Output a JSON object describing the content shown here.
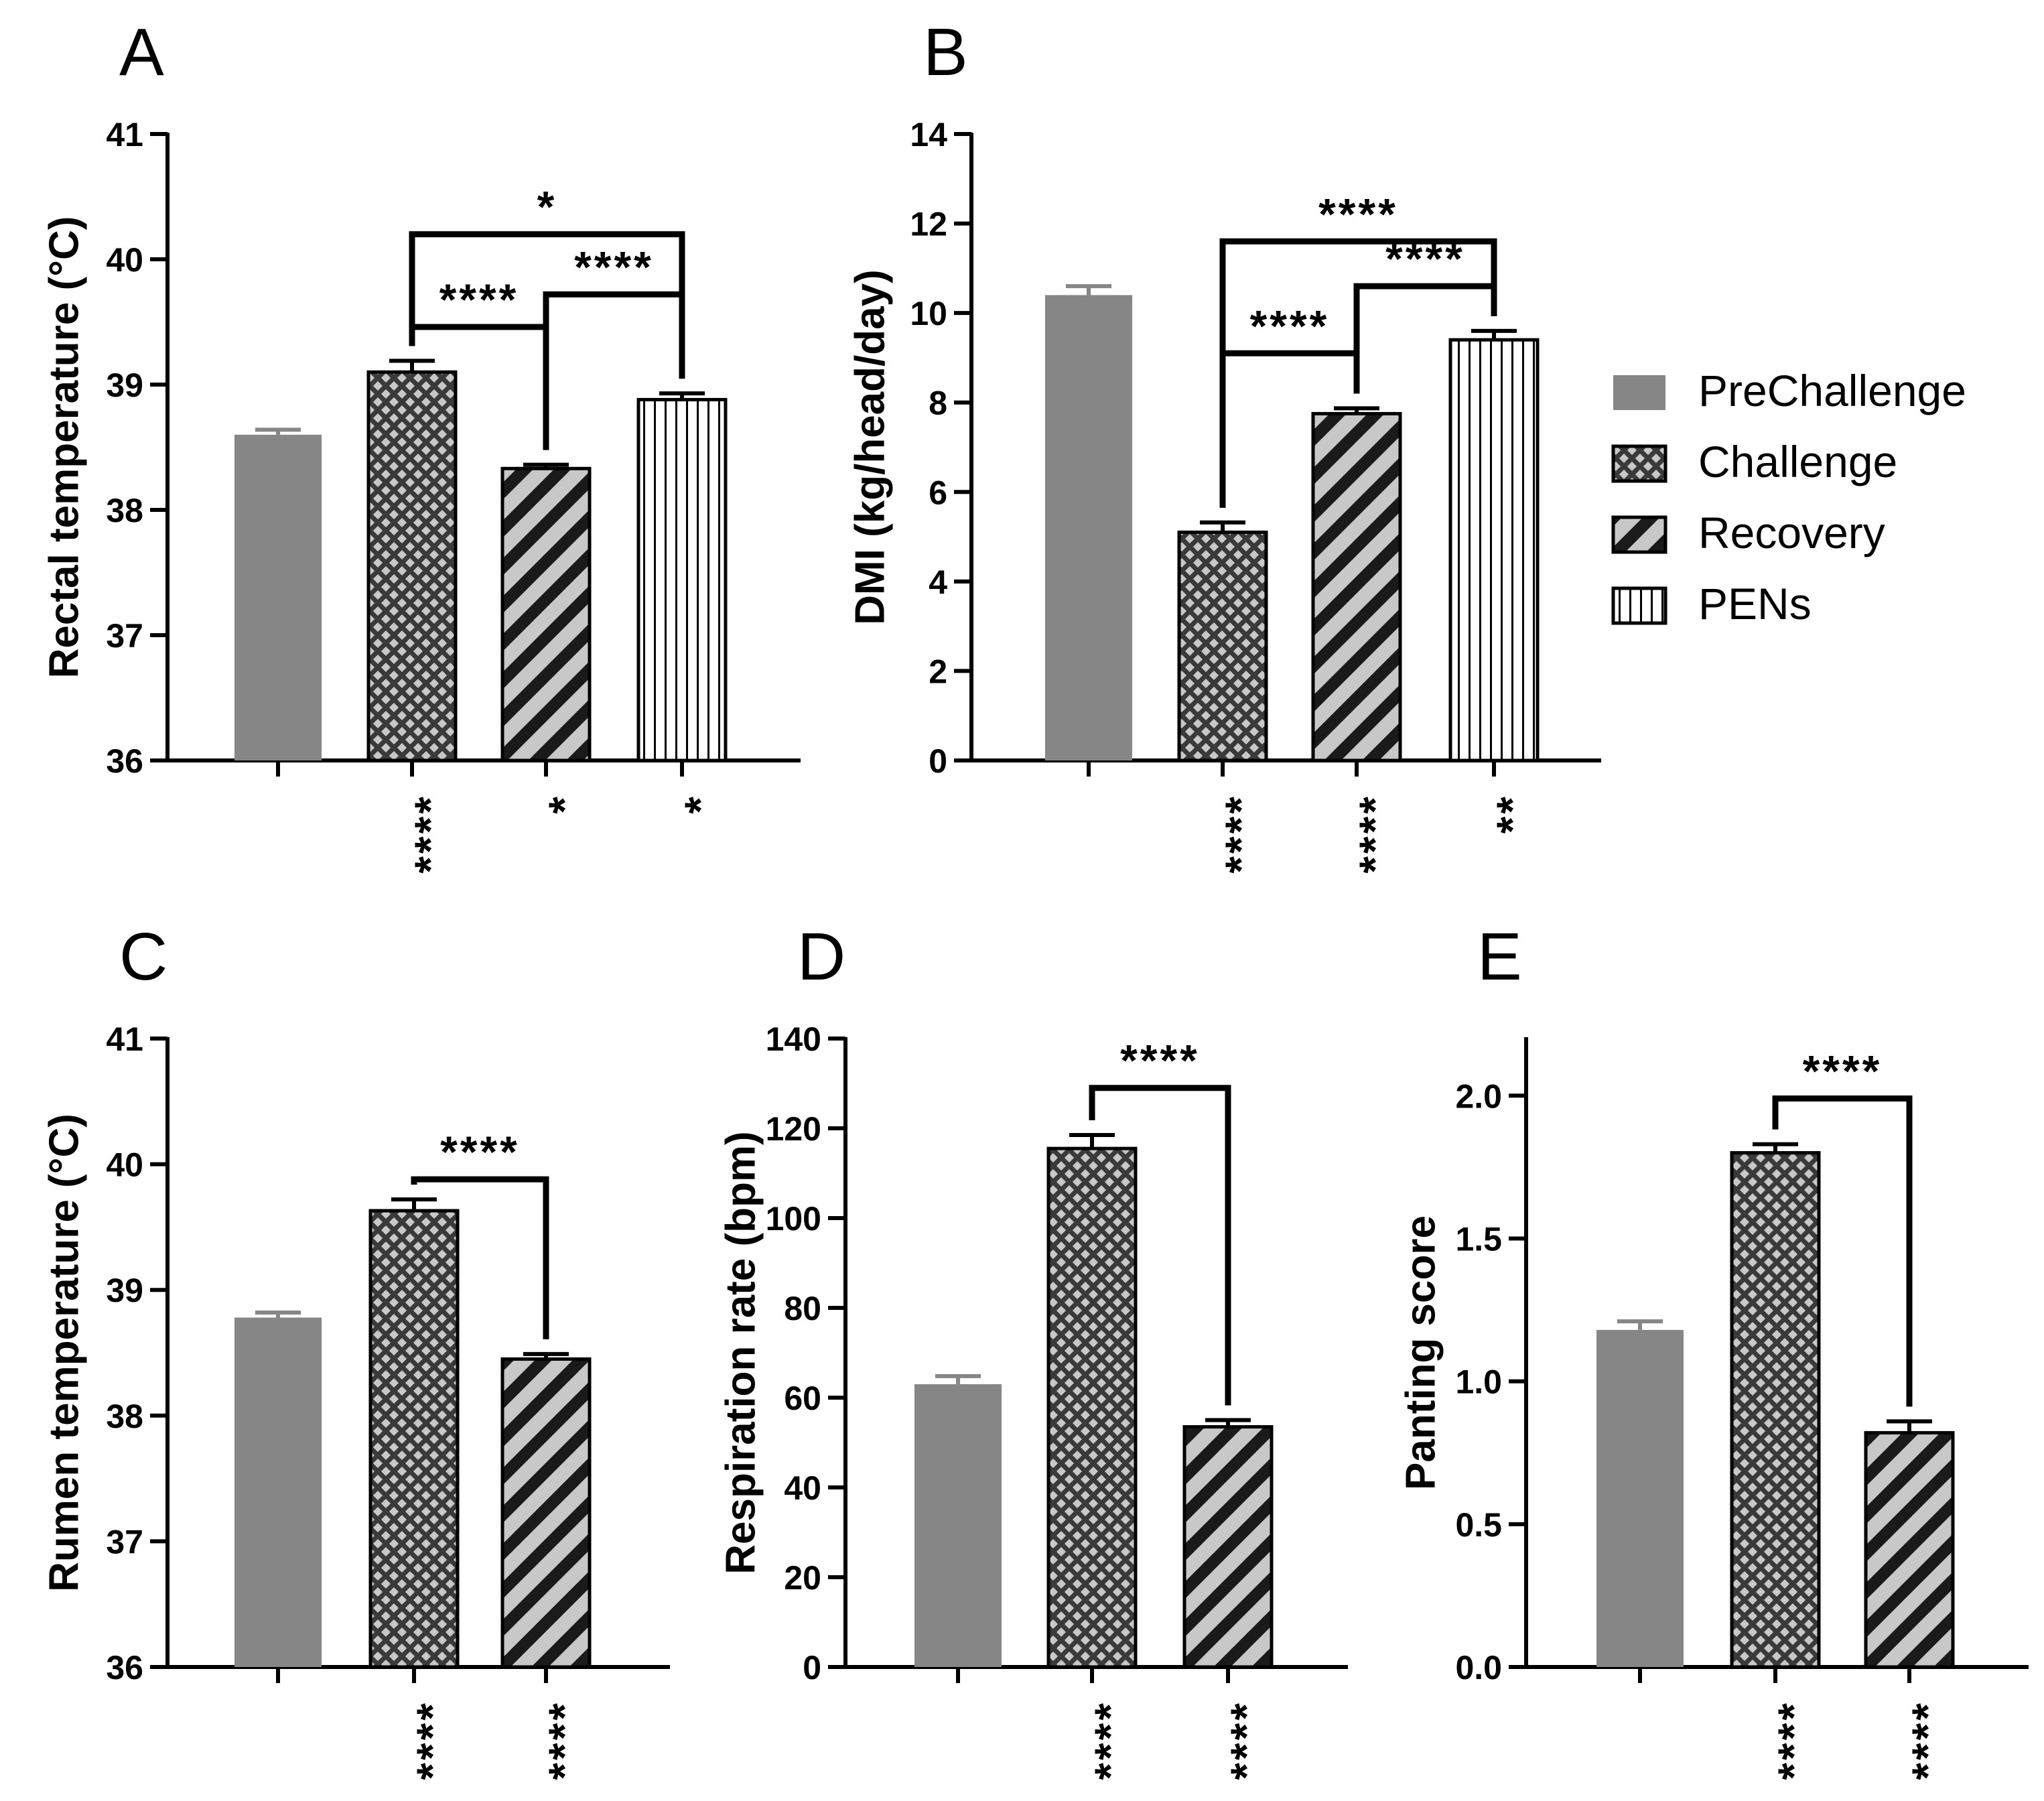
{
  "chart_data": [
    {
      "panel": "A",
      "type": "bar",
      "ylabel": "Rectal temperature (°C)",
      "ylim": [
        36,
        41
      ],
      "yticks": [
        36,
        37,
        38,
        39,
        40,
        41
      ],
      "ytick_labels": [
        "36",
        "37",
        "38",
        "39",
        "40",
        "41"
      ],
      "categories": [
        "PreChallenge",
        "Challenge",
        "Recovery",
        "PENs"
      ],
      "values": [
        38.6,
        39.1,
        38.33,
        38.88
      ],
      "errors": [
        0.04,
        0.09,
        0.03,
        0.05
      ],
      "below_labels": [
        "",
        "****",
        "*",
        "*"
      ],
      "comparisons": [
        {
          "from": 1,
          "to": 2,
          "label": "****",
          "y": 39.46
        },
        {
          "from": 2,
          "to": 3,
          "label": "****",
          "y": 39.72
        },
        {
          "from": 1,
          "to": 3,
          "label": "*",
          "y": 40.2
        }
      ]
    },
    {
      "panel": "B",
      "type": "bar",
      "ylabel": "DMI (kg/head/day)",
      "ylim": [
        0,
        14
      ],
      "yticks": [
        0,
        2,
        4,
        6,
        8,
        10,
        12,
        14
      ],
      "ytick_labels": [
        "0",
        "2",
        "4",
        "6",
        "8",
        "10",
        "12",
        "14"
      ],
      "categories": [
        "PreChallenge",
        "Challenge",
        "Recovery",
        "PENs"
      ],
      "values": [
        10.4,
        5.1,
        7.75,
        9.4
      ],
      "errors": [
        0.2,
        0.22,
        0.12,
        0.2
      ],
      "below_labels": [
        "",
        "****",
        "****",
        "**"
      ],
      "comparisons": [
        {
          "from": 1,
          "to": 2,
          "label": "****",
          "y": 9.1
        },
        {
          "from": 2,
          "to": 3,
          "label": "****",
          "y": 10.6
        },
        {
          "from": 1,
          "to": 3,
          "label": "****",
          "y": 11.6
        }
      ]
    },
    {
      "panel": "C",
      "type": "bar",
      "ylabel": "Rumen temperature (°C)",
      "ylim": [
        36,
        41
      ],
      "yticks": [
        36,
        37,
        38,
        39,
        40,
        41
      ],
      "ytick_labels": [
        "36",
        "37",
        "38",
        "39",
        "40",
        "41"
      ],
      "categories": [
        "PreChallenge",
        "Challenge",
        "Recovery"
      ],
      "values": [
        38.78,
        39.63,
        38.45
      ],
      "errors": [
        0.04,
        0.09,
        0.04
      ],
      "below_labels": [
        "",
        "****",
        "****"
      ],
      "comparisons": [
        {
          "from": 1,
          "to": 2,
          "label": "****",
          "y": 39.88
        }
      ]
    },
    {
      "panel": "D",
      "type": "bar",
      "ylabel": "Respiration rate (bpm)",
      "ylim": [
        0,
        140
      ],
      "yticks": [
        0,
        20,
        40,
        60,
        80,
        100,
        120,
        140
      ],
      "ytick_labels": [
        "0",
        "20",
        "40",
        "60",
        "80",
        "100",
        "120",
        "140"
      ],
      "categories": [
        "PreChallenge",
        "Challenge",
        "Recovery"
      ],
      "values": [
        63,
        115.5,
        53.5
      ],
      "errors": [
        1.8,
        3,
        1.5
      ],
      "below_labels": [
        "",
        "****",
        "****"
      ],
      "comparisons": [
        {
          "from": 1,
          "to": 2,
          "label": "****",
          "y": 129
        }
      ]
    },
    {
      "panel": "E",
      "type": "bar",
      "ylabel": "Panting score",
      "ylim": [
        0,
        2.2
      ],
      "yticks": [
        0,
        0.5,
        1,
        1.5,
        2
      ],
      "ytick_labels": [
        "0.0",
        "0.5",
        "1.0",
        "1.5",
        "2.0"
      ],
      "categories": [
        "PreChallenge",
        "Challenge",
        "Recovery"
      ],
      "values": [
        1.18,
        1.8,
        0.82
      ],
      "errors": [
        0.03,
        0.03,
        0.04
      ],
      "below_labels": [
        "",
        "****",
        "****"
      ],
      "comparisons": [
        {
          "from": 1,
          "to": 2,
          "label": "****",
          "y": 1.99
        }
      ]
    }
  ],
  "legend": [
    {
      "label": "PreChallenge",
      "pattern": "solid"
    },
    {
      "label": "Challenge",
      "pattern": "crosshatch"
    },
    {
      "label": "Recovery",
      "pattern": "diagonal"
    },
    {
      "label": "PENs",
      "pattern": "vertical"
    }
  ],
  "colors": {
    "solid_fill": "#868686",
    "pattern_bg": "#c8c8c8",
    "pattern_fg": "#3a3a3a",
    "axis": "#000000"
  }
}
